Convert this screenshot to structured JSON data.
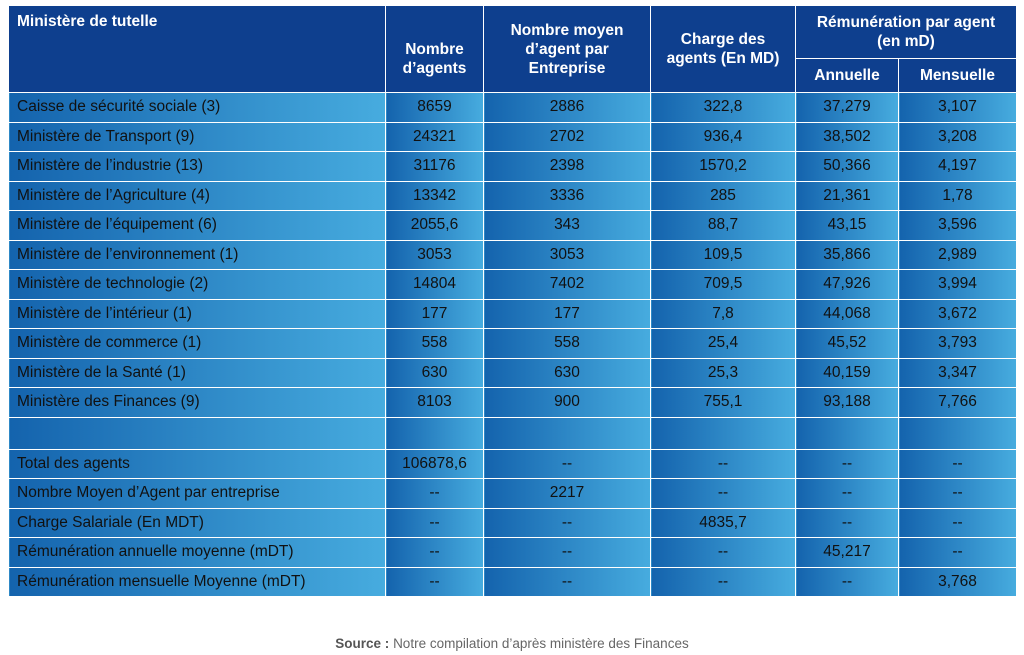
{
  "table": {
    "header": {
      "ministry": "Ministère de tutelle",
      "agents": "Nombre d’agents",
      "avg_agents": "Nombre moyen d’agent par Entreprise",
      "charge": "Charge des agents (En MD)",
      "remuneration": "Rémunération par agent (en mD)",
      "annual": "Annuelle",
      "monthly": "Mensuelle"
    },
    "rows": [
      [
        "Caisse de sécurité sociale (3)",
        "8659",
        "2886",
        "322,8",
        "37,279",
        "3,107"
      ],
      [
        "Ministère de Transport (9)",
        "24321",
        "2702",
        "936,4",
        "38,502",
        "3,208"
      ],
      [
        "Ministère de l’industrie (13)",
        "31176",
        "2398",
        "1570,2",
        "50,366",
        "4,197"
      ],
      [
        "Ministère de l’Agriculture (4)",
        "13342",
        "3336",
        "285",
        "21,361",
        "1,78"
      ],
      [
        "Ministère de l’équipement (6)",
        "2055,6",
        "343",
        "88,7",
        "43,15",
        "3,596"
      ],
      [
        "Ministère de l’environnement (1)",
        "3053",
        "3053",
        "109,5",
        "35,866",
        "2,989"
      ],
      [
        "Ministère de technologie (2)",
        "14804",
        "7402",
        "709,5",
        "47,926",
        "3,994"
      ],
      [
        "Ministère de l’intérieur (1)",
        "177",
        "177",
        "7,8",
        "44,068",
        "3,672"
      ],
      [
        "Ministère de commerce (1)",
        "558",
        "558",
        "25,4",
        "45,52",
        "3,793"
      ],
      [
        "Ministère de la Santé (1)",
        "630",
        "630",
        "25,3",
        "40,159",
        "3,347"
      ],
      [
        "Ministère des Finances (9)",
        "8103",
        "900",
        "755,1",
        "93,188",
        "7,766"
      ]
    ],
    "summary": [
      [
        "Total des agents",
        "106878,6",
        "--",
        "--",
        "--",
        "--"
      ],
      [
        "Nombre Moyen d’Agent par entreprise",
        "--",
        "2217",
        "--",
        "--",
        "--"
      ],
      [
        "Charge Salariale (En MDT)",
        "--",
        "--",
        "4835,7",
        "--",
        "--"
      ],
      [
        "Rémunération annuelle moyenne (mDT)",
        "--",
        "--",
        "--",
        "45,217",
        "--"
      ],
      [
        "Rémunération mensuelle Moyenne (mDT)",
        "--",
        "--",
        "--",
        "--",
        "3,768"
      ]
    ]
  },
  "source": {
    "label": "Source :",
    "text": "Notre compilation d’après ministère des Finances"
  }
}
